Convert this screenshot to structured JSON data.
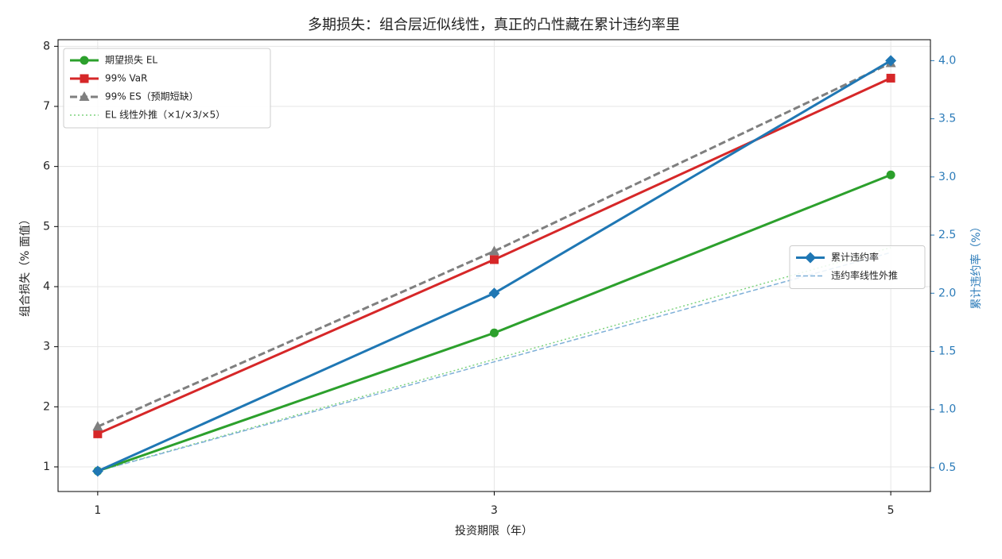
{
  "chart_data": {
    "type": "line",
    "title": "多期损失：组合层近似线性，真正的凸性藏在累计违约率里",
    "xlabel": "投资期限（年）",
    "ylabel": "组合损失（% 面值）",
    "y2label": "累计违约率（%）",
    "x": [
      1,
      3,
      5
    ],
    "xlim": [
      0.8,
      5.2
    ],
    "xticks": [
      1,
      3,
      5
    ],
    "ylim": [
      0.59,
      8.11
    ],
    "yticks": [
      1,
      2,
      3,
      4,
      5,
      6,
      7,
      8
    ],
    "y2lim": [
      0.295,
      4.18
    ],
    "y2ticks": [
      0.5,
      {
        "value": 1,
        "label": "1.0"
      },
      1.5,
      {
        "value": 2,
        "label": "2.0"
      },
      2.5,
      {
        "value": 3,
        "label": "3.0"
      },
      3.5,
      {
        "value": 4,
        "label": "4.0"
      }
    ],
    "y2color": "#2b7bb9",
    "grid": true,
    "legend": "upper left",
    "legend2": "center right",
    "series": [
      {
        "name": "期望损失 EL",
        "color": "#2ca02c",
        "values": [
          0.93,
          3.23,
          5.86
        ],
        "linestyle": "solid",
        "marker": "circle",
        "axis": "y"
      },
      {
        "name": "99% VaR",
        "color": "#d62728",
        "values": [
          1.55,
          4.45,
          7.47
        ],
        "linestyle": "solid",
        "marker": "square",
        "axis": "y"
      },
      {
        "name": "99% ES（预期短缺）",
        "color": "#7f7f7f",
        "values": [
          1.67,
          4.59,
          7.72
        ],
        "linestyle": "dashed",
        "marker": "triangle",
        "axis": "y"
      },
      {
        "name": "EL 线性外推（×1/×3/×5）",
        "color": "#7fd37f",
        "values": [
          0.93,
          2.79,
          4.65
        ],
        "linestyle": "dotted",
        "marker": "none",
        "axis": "y"
      },
      {
        "name": "累计违约率",
        "color": "#1f77b4",
        "values": [
          0.47,
          2.0,
          4.0
        ],
        "linestyle": "solid",
        "marker": "diamond",
        "axis": "y2"
      },
      {
        "name": "违约率线性外推",
        "color": "#7fb0d8",
        "values": [
          0.47,
          1.41,
          2.35
        ],
        "linestyle": "dashed-light",
        "marker": "none",
        "axis": "y2"
      }
    ]
  }
}
